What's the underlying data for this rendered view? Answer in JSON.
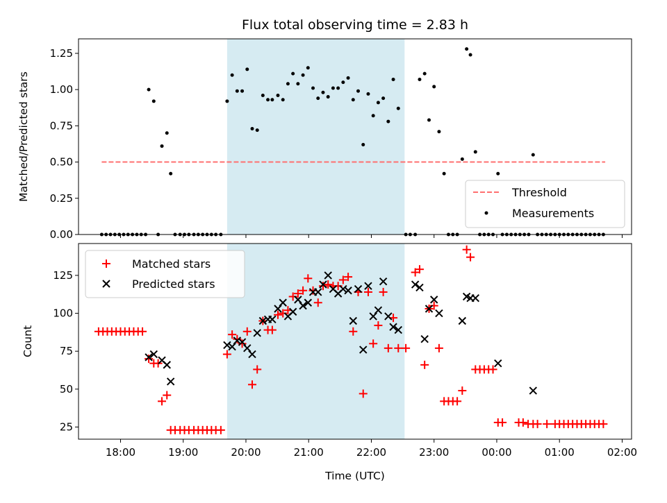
{
  "chart_data": [
    {
      "type": "scatter",
      "title": "Flux total observing time = 2.83 h",
      "ylabel": "Matched/Predicted stars",
      "xlabel": "",
      "ylim": [
        0,
        1.35
      ],
      "yticks": [
        0.0,
        0.25,
        0.5,
        0.75,
        1.0,
        1.25
      ],
      "ytick_labels": [
        "0.00",
        "0.25",
        "0.50",
        "0.75",
        "1.00",
        "1.25"
      ],
      "x_unit": "hours since 17:00 UTC",
      "xlim": [
        0.33,
        9.15
      ],
      "highlight_span": [
        2.7,
        5.53
      ],
      "threshold": {
        "name": "Threshold",
        "value": 0.5,
        "x_range": [
          0.7,
          8.73
        ],
        "color": "#ff6f6f"
      },
      "legend": {
        "position": "lower-right",
        "entries": [
          "Threshold",
          "Measurements"
        ]
      },
      "series": [
        {
          "name": "Measurements",
          "color": "#000000",
          "points": [
            [
              0.7,
              0
            ],
            [
              0.77,
              0
            ],
            [
              0.84,
              0
            ],
            [
              0.91,
              0
            ],
            [
              0.98,
              0
            ],
            [
              1.05,
              0
            ],
            [
              1.12,
              0
            ],
            [
              1.19,
              0
            ],
            [
              1.26,
              0
            ],
            [
              1.33,
              0
            ],
            [
              1.4,
              0
            ],
            [
              1.45,
              1.0
            ],
            [
              1.53,
              0.92
            ],
            [
              1.6,
              0
            ],
            [
              1.66,
              0.61
            ],
            [
              1.74,
              0.7
            ],
            [
              1.8,
              0.42
            ],
            [
              1.87,
              0
            ],
            [
              1.95,
              0
            ],
            [
              2.02,
              0
            ],
            [
              2.09,
              0
            ],
            [
              2.17,
              0
            ],
            [
              2.24,
              0
            ],
            [
              2.31,
              0
            ],
            [
              2.38,
              0
            ],
            [
              2.45,
              0
            ],
            [
              2.52,
              0
            ],
            [
              2.6,
              0
            ],
            [
              2.7,
              0.92
            ],
            [
              2.78,
              1.1
            ],
            [
              2.86,
              0.99
            ],
            [
              2.94,
              0.99
            ],
            [
              3.02,
              1.14
            ],
            [
              3.1,
              0.73
            ],
            [
              3.18,
              0.72
            ],
            [
              3.27,
              0.96
            ],
            [
              3.35,
              0.93
            ],
            [
              3.42,
              0.93
            ],
            [
              3.51,
              0.96
            ],
            [
              3.59,
              0.93
            ],
            [
              3.67,
              1.04
            ],
            [
              3.75,
              1.11
            ],
            [
              3.83,
              1.04
            ],
            [
              3.91,
              1.1
            ],
            [
              3.99,
              1.15
            ],
            [
              4.07,
              1.01
            ],
            [
              4.15,
              0.94
            ],
            [
              4.23,
              0.98
            ],
            [
              4.31,
              0.95
            ],
            [
              4.39,
              1.01
            ],
            [
              4.47,
              1.01
            ],
            [
              4.55,
              1.05
            ],
            [
              4.63,
              1.08
            ],
            [
              4.71,
              0.93
            ],
            [
              4.79,
              0.99
            ],
            [
              4.87,
              0.62
            ],
            [
              4.95,
              0.97
            ],
            [
              5.03,
              0.82
            ],
            [
              5.11,
              0.91
            ],
            [
              5.19,
              0.94
            ],
            [
              5.27,
              0.78
            ],
            [
              5.35,
              1.07
            ],
            [
              5.43,
              0.87
            ],
            [
              5.55,
              0
            ],
            [
              5.62,
              0
            ],
            [
              5.7,
              0
            ],
            [
              5.77,
              1.07
            ],
            [
              5.85,
              1.11
            ],
            [
              5.92,
              0.79
            ],
            [
              6.0,
              1.02
            ],
            [
              6.08,
              0.71
            ],
            [
              6.16,
              0.42
            ],
            [
              6.23,
              0
            ],
            [
              6.3,
              0
            ],
            [
              6.37,
              0
            ],
            [
              6.45,
              0.52
            ],
            [
              6.52,
              1.28
            ],
            [
              6.58,
              1.24
            ],
            [
              6.66,
              0.57
            ],
            [
              6.73,
              0
            ],
            [
              6.8,
              0
            ],
            [
              6.87,
              0
            ],
            [
              6.94,
              0
            ],
            [
              7.02,
              0.42
            ],
            [
              7.09,
              0
            ],
            [
              7.16,
              0
            ],
            [
              7.23,
              0
            ],
            [
              7.3,
              0
            ],
            [
              7.37,
              0
            ],
            [
              7.44,
              0
            ],
            [
              7.51,
              0
            ],
            [
              7.58,
              0.55
            ],
            [
              7.65,
              0
            ],
            [
              7.72,
              0
            ],
            [
              7.79,
              0
            ],
            [
              7.86,
              0
            ],
            [
              7.93,
              0
            ],
            [
              8.0,
              0
            ],
            [
              8.07,
              0
            ],
            [
              8.14,
              0
            ],
            [
              8.21,
              0
            ],
            [
              8.28,
              0
            ],
            [
              8.35,
              0
            ],
            [
              8.42,
              0
            ],
            [
              8.49,
              0
            ],
            [
              8.56,
              0
            ],
            [
              8.63,
              0
            ],
            [
              8.7,
              0
            ]
          ]
        }
      ]
    },
    {
      "type": "scatter",
      "title": "",
      "ylabel": "Count",
      "xlabel": "Time (UTC)",
      "ylim": [
        17,
        146
      ],
      "yticks": [
        25,
        50,
        75,
        100,
        125
      ],
      "ytick_labels": [
        "25",
        "50",
        "75",
        "100",
        "125"
      ],
      "x_unit": "hours since 17:00 UTC",
      "xlim": [
        0.33,
        9.15
      ],
      "xticks": [
        1,
        2,
        3,
        4,
        5,
        6,
        7,
        8,
        9
      ],
      "xtick_labels": [
        "18:00",
        "19:00",
        "20:00",
        "21:00",
        "22:00",
        "23:00",
        "00:00",
        "01:00",
        "02:00"
      ],
      "highlight_span": [
        2.7,
        5.53
      ],
      "legend": {
        "position": "upper-left",
        "entries": [
          "Matched stars",
          "Predicted stars"
        ]
      },
      "series": [
        {
          "name": "Matched stars",
          "marker": "plus",
          "color": "#ff0000",
          "points": [
            [
              0.65,
              88
            ],
            [
              0.72,
              88
            ],
            [
              0.79,
              88
            ],
            [
              0.86,
              88
            ],
            [
              0.93,
              88
            ],
            [
              1.0,
              88
            ],
            [
              1.07,
              88
            ],
            [
              1.14,
              88
            ],
            [
              1.21,
              88
            ],
            [
              1.28,
              88
            ],
            [
              1.35,
              88
            ],
            [
              1.45,
              70
            ],
            [
              1.53,
              67
            ],
            [
              1.6,
              67
            ],
            [
              1.66,
              42
            ],
            [
              1.74,
              46
            ],
            [
              1.8,
              23
            ],
            [
              1.87,
              23
            ],
            [
              1.95,
              23
            ],
            [
              2.02,
              23
            ],
            [
              2.09,
              23
            ],
            [
              2.17,
              23
            ],
            [
              2.24,
              23
            ],
            [
              2.31,
              23
            ],
            [
              2.38,
              23
            ],
            [
              2.45,
              23
            ],
            [
              2.52,
              23
            ],
            [
              2.6,
              23
            ],
            [
              2.7,
              73
            ],
            [
              2.78,
              86
            ],
            [
              2.86,
              83
            ],
            [
              2.94,
              80
            ],
            [
              3.02,
              88
            ],
            [
              3.1,
              53
            ],
            [
              3.18,
              63
            ],
            [
              3.27,
              95
            ],
            [
              3.35,
              89
            ],
            [
              3.42,
              89
            ],
            [
              3.51,
              99
            ],
            [
              3.59,
              100
            ],
            [
              3.67,
              102
            ],
            [
              3.75,
              111
            ],
            [
              3.83,
              113
            ],
            [
              3.91,
              115
            ],
            [
              3.99,
              123
            ],
            [
              4.07,
              115
            ],
            [
              4.15,
              107
            ],
            [
              4.23,
              118
            ],
            [
              4.31,
              119
            ],
            [
              4.39,
              118
            ],
            [
              4.47,
              118
            ],
            [
              4.55,
              122
            ],
            [
              4.63,
              124
            ],
            [
              4.71,
              88
            ],
            [
              4.79,
              114
            ],
            [
              4.87,
              47
            ],
            [
              4.95,
              114
            ],
            [
              5.03,
              80
            ],
            [
              5.11,
              92
            ],
            [
              5.19,
              114
            ],
            [
              5.27,
              77
            ],
            [
              5.35,
              97
            ],
            [
              5.43,
              77
            ],
            [
              5.55,
              77
            ],
            [
              5.7,
              127
            ],
            [
              5.77,
              129
            ],
            [
              5.85,
              66
            ],
            [
              5.92,
              103
            ],
            [
              6.0,
              105
            ],
            [
              6.08,
              77
            ],
            [
              6.16,
              42
            ],
            [
              6.23,
              42
            ],
            [
              6.3,
              42
            ],
            [
              6.37,
              42
            ],
            [
              6.45,
              49
            ],
            [
              6.52,
              142
            ],
            [
              6.58,
              137
            ],
            [
              6.66,
              63
            ],
            [
              6.73,
              63
            ],
            [
              6.8,
              63
            ],
            [
              6.87,
              63
            ],
            [
              6.94,
              63
            ],
            [
              7.02,
              28
            ],
            [
              7.09,
              28
            ],
            [
              7.35,
              28
            ],
            [
              7.42,
              28
            ],
            [
              7.5,
              27
            ],
            [
              7.58,
              27
            ],
            [
              7.65,
              27
            ],
            [
              7.8,
              27
            ],
            [
              7.93,
              27
            ],
            [
              8.0,
              27
            ],
            [
              8.07,
              27
            ],
            [
              8.14,
              27
            ],
            [
              8.21,
              27
            ],
            [
              8.28,
              27
            ],
            [
              8.35,
              27
            ],
            [
              8.42,
              27
            ],
            [
              8.49,
              27
            ],
            [
              8.56,
              27
            ],
            [
              8.63,
              27
            ],
            [
              8.7,
              27
            ]
          ]
        },
        {
          "name": "Predicted stars",
          "marker": "x",
          "color": "#000000",
          "points": [
            [
              1.45,
              71
            ],
            [
              1.53,
              73
            ],
            [
              1.66,
              69
            ],
            [
              1.74,
              66
            ],
            [
              1.8,
              55
            ],
            [
              2.7,
              79
            ],
            [
              2.78,
              78
            ],
            [
              2.86,
              82
            ],
            [
              2.94,
              81
            ],
            [
              3.02,
              77
            ],
            [
              3.1,
              73
            ],
            [
              3.18,
              87
            ],
            [
              3.27,
              95
            ],
            [
              3.35,
              96
            ],
            [
              3.42,
              96
            ],
            [
              3.51,
              103
            ],
            [
              3.59,
              107
            ],
            [
              3.67,
              98
            ],
            [
              3.75,
              101
            ],
            [
              3.83,
              109
            ],
            [
              3.91,
              105
            ],
            [
              3.99,
              107
            ],
            [
              4.07,
              114
            ],
            [
              4.15,
              114
            ],
            [
              4.23,
              119
            ],
            [
              4.31,
              125
            ],
            [
              4.39,
              116
            ],
            [
              4.47,
              113
            ],
            [
              4.55,
              116
            ],
            [
              4.63,
              115
            ],
            [
              4.71,
              95
            ],
            [
              4.79,
              116
            ],
            [
              4.87,
              76
            ],
            [
              4.95,
              118
            ],
            [
              5.03,
              98
            ],
            [
              5.11,
              102
            ],
            [
              5.19,
              121
            ],
            [
              5.27,
              98
            ],
            [
              5.35,
              91
            ],
            [
              5.43,
              89
            ],
            [
              5.7,
              119
            ],
            [
              5.77,
              117
            ],
            [
              5.85,
              83
            ],
            [
              5.92,
              103
            ],
            [
              6.0,
              109
            ],
            [
              6.08,
              100
            ],
            [
              6.45,
              95
            ],
            [
              6.52,
              111
            ],
            [
              6.58,
              110
            ],
            [
              6.66,
              110
            ],
            [
              7.02,
              67
            ],
            [
              7.58,
              49
            ]
          ]
        }
      ]
    }
  ]
}
